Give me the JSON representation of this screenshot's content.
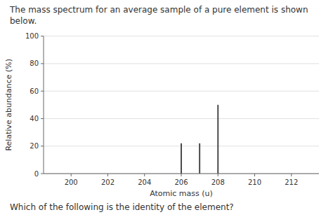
{
  "chart_data": {
    "type": "stem",
    "title": "The mass spectrum for an average sample of a pure element is shown below.",
    "annotations": [
      "Which of the following is the identity of the element?"
    ],
    "x_label": "Atomic mass (u)",
    "y_label": "Relative abundance (%)",
    "x": [
      206,
      207,
      208
    ],
    "values": [
      22,
      22,
      50
    ],
    "color": "#4a4a4a",
    "xlim": [
      198.5,
      213.5
    ],
    "ylim": [
      0,
      100
    ],
    "xticks": [
      200,
      202,
      204,
      206,
      208,
      210,
      212
    ],
    "yticks": [
      0,
      20,
      40,
      60,
      80,
      100
    ],
    "grid": true
  }
}
